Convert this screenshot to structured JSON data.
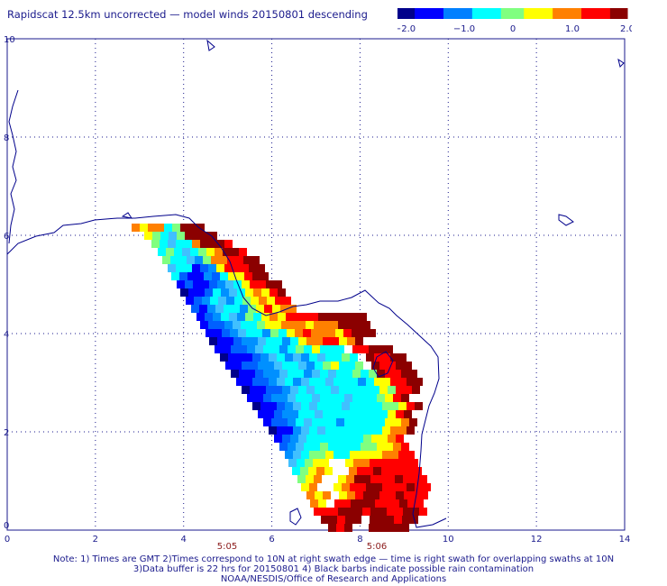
{
  "title": "Rapidscat 12.5km uncorrected — model winds 20150801 descending",
  "colorbar": {
    "ticks": [
      "−2.0",
      "−1.0",
      "0",
      "1.0",
      "2.0"
    ],
    "colors": [
      "#00008b",
      "#0000ff",
      "#0080ff",
      "#00ffff",
      "#80ff80",
      "#ffff00",
      "#ff8000",
      "#ff0000",
      "#8b0000"
    ]
  },
  "axes": {
    "x_ticks": [
      "0",
      "2",
      "4",
      "6",
      "8",
      "10",
      "12",
      "14"
    ],
    "y_ticks": [
      "0",
      "2",
      "4",
      "6",
      "8",
      "10"
    ],
    "time_labels": [
      "5:05",
      "5:06"
    ]
  },
  "map": {
    "coastline_color": "#00008b",
    "grid": true
  },
  "notes": [
    "Note: 1) Times are GMT 2)Times correspond to 10N at right swath edge — time is right swath for overlapping swaths at 10N",
    "3)Data buffer is 22 hrs for 20150801 4) Black barbs indicate possible rain contamination",
    "NOAA/NESDIS/Office of Research and Applications"
  ]
}
